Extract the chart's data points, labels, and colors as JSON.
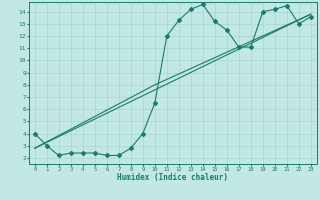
{
  "title": "",
  "xlabel": "Humidex (Indice chaleur)",
  "ylabel": "",
  "background_color": "#c2e8e4",
  "line_color": "#1a7a6e",
  "grid_color": "#a8d4d0",
  "xlim": [
    -0.5,
    23.5
  ],
  "ylim": [
    1.5,
    14.8
  ],
  "xticks": [
    0,
    1,
    2,
    3,
    4,
    5,
    6,
    7,
    8,
    9,
    10,
    11,
    12,
    13,
    14,
    15,
    16,
    17,
    18,
    19,
    20,
    21,
    22,
    23
  ],
  "yticks": [
    2,
    3,
    4,
    5,
    6,
    7,
    8,
    9,
    10,
    11,
    12,
    13,
    14
  ],
  "series1_x": [
    0,
    1,
    2,
    3,
    4,
    5,
    6,
    7,
    8,
    9,
    10,
    11,
    12,
    13,
    14,
    15,
    16,
    17,
    18,
    19,
    20,
    21,
    22,
    23
  ],
  "series1_y": [
    4.0,
    3.0,
    2.2,
    2.4,
    2.4,
    2.4,
    2.2,
    2.2,
    2.8,
    4.0,
    6.5,
    12.0,
    13.3,
    14.2,
    14.6,
    13.2,
    12.5,
    11.1,
    11.1,
    14.0,
    14.2,
    14.5,
    13.0,
    13.6
  ],
  "series2_x": [
    0,
    23
  ],
  "series2_y": [
    2.8,
    13.8
  ],
  "series3_x": [
    0,
    10,
    23
  ],
  "series3_y": [
    2.8,
    8.0,
    13.8
  ]
}
